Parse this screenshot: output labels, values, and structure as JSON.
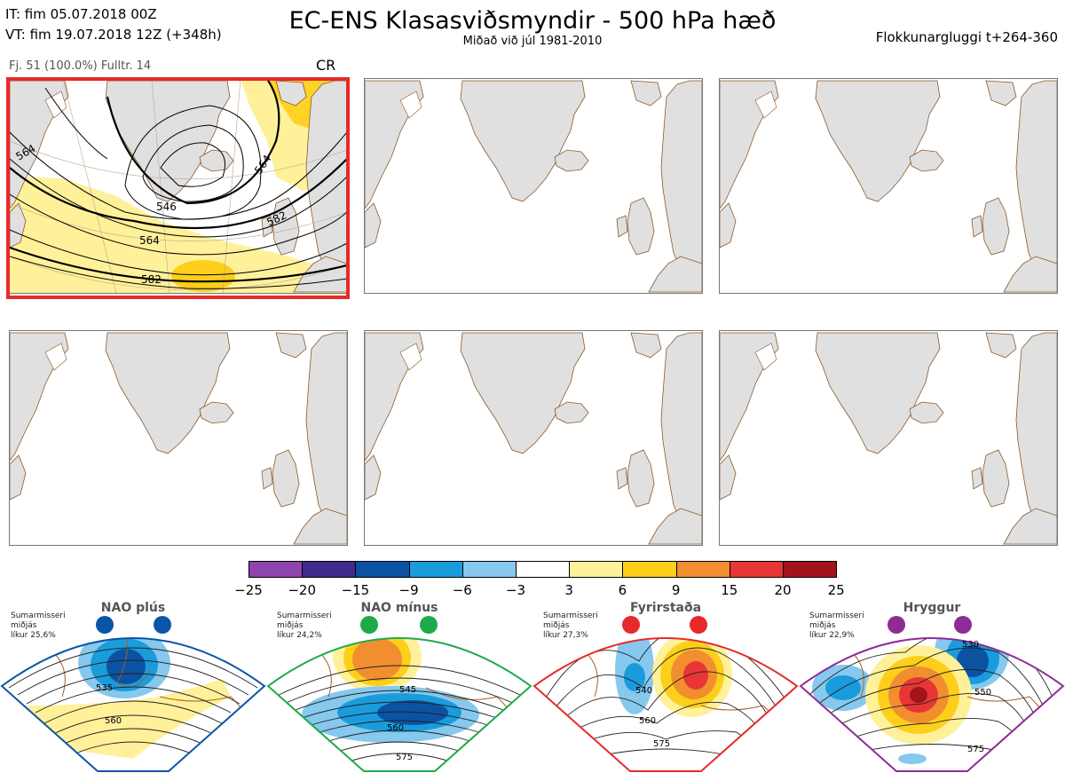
{
  "header": {
    "it_line": "IT: fim 05.07.2018 00Z",
    "vt_line": "VT: fim 19.07.2018 12Z  (+348h)",
    "title": "EC-ENS Klasasviðsmyndir - 500 hPa hæð",
    "subtitle": "Miðað við júl 1981-2010",
    "window": "Flokkunargluggi t+264-360"
  },
  "cluster": {
    "info": "Fj. 51 (100.0%)   Fulltr. 14",
    "regime": "CR",
    "contour_labels": [
      "564",
      "546",
      "564",
      "582",
      "564",
      "582"
    ]
  },
  "colorbar": {
    "colors": [
      "#8e44ad",
      "#3f2a8e",
      "#0b52a2",
      "#1a9cdc",
      "#86c8ee",
      "#ffffff",
      "#fff19a",
      "#fdcf1b",
      "#f18e30",
      "#e73634",
      "#a3131a"
    ],
    "ticks": [
      "−25",
      "−20",
      "−15",
      "−9",
      "−6",
      "−3",
      "3",
      "6",
      "9",
      "15",
      "20",
      "25"
    ]
  },
  "regimes": [
    {
      "name": "NAO plús",
      "note": [
        "Sumarmisseri",
        "miðjás",
        "líkur 25,6%"
      ],
      "color": "#0b55a8",
      "labels": [
        "535",
        "560"
      ]
    },
    {
      "name": "NAO mínus",
      "note": [
        "Sumarmisseri",
        "miðjás",
        "líkur 24,2%"
      ],
      "color": "#1faa4a",
      "labels": [
        "545",
        "560",
        "575"
      ]
    },
    {
      "name": "Fyrirstaða",
      "note": [
        "Sumarmisseri",
        "miðjás",
        "líkur 27,3%"
      ],
      "color": "#e62a2a",
      "labels": [
        "540",
        "560",
        "575"
      ]
    },
    {
      "name": "Hryggur",
      "note": [
        "Sumarmisseri",
        "miðjás",
        "líkur 22,9%"
      ],
      "color": "#8e2c96",
      "labels": [
        "530",
        "550",
        "575"
      ]
    }
  ]
}
